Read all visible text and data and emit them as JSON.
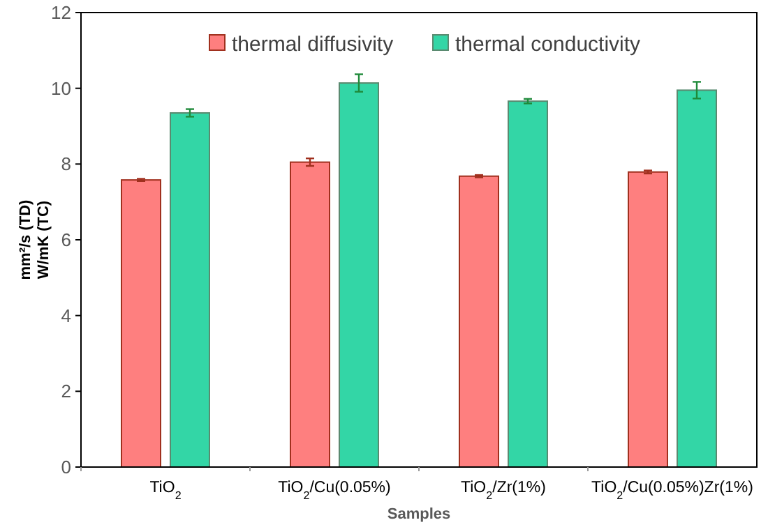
{
  "chart_data": {
    "type": "bar",
    "xlabel": "Samples",
    "ylabel": "mm²/s (TD)\nW/mK (TC)",
    "categories": [
      "TiO$_{2}$",
      "TiO$_{2}$/Cu(0.05%)",
      "TiO$_{2}$/Zr(1%)",
      "TiO$_{2}$/Cu(0.05%)Zr(1%)"
    ],
    "series": [
      {
        "name": "thermal diffusivity",
        "color": "#fe7f7f",
        "values": [
          7.58,
          8.05,
          7.68,
          7.79
        ],
        "errors": [
          0.03,
          0.1,
          0.03,
          0.04
        ]
      },
      {
        "name": "thermal conductivity",
        "color": "#33d6a6",
        "values": [
          9.35,
          10.14,
          9.66,
          9.95
        ],
        "errors": [
          0.1,
          0.23,
          0.06,
          0.22
        ]
      }
    ],
    "ylim": [
      0,
      12
    ],
    "yticks": [
      0,
      2,
      4,
      6,
      8,
      10,
      12
    ],
    "grid": false,
    "legend": "top"
  }
}
